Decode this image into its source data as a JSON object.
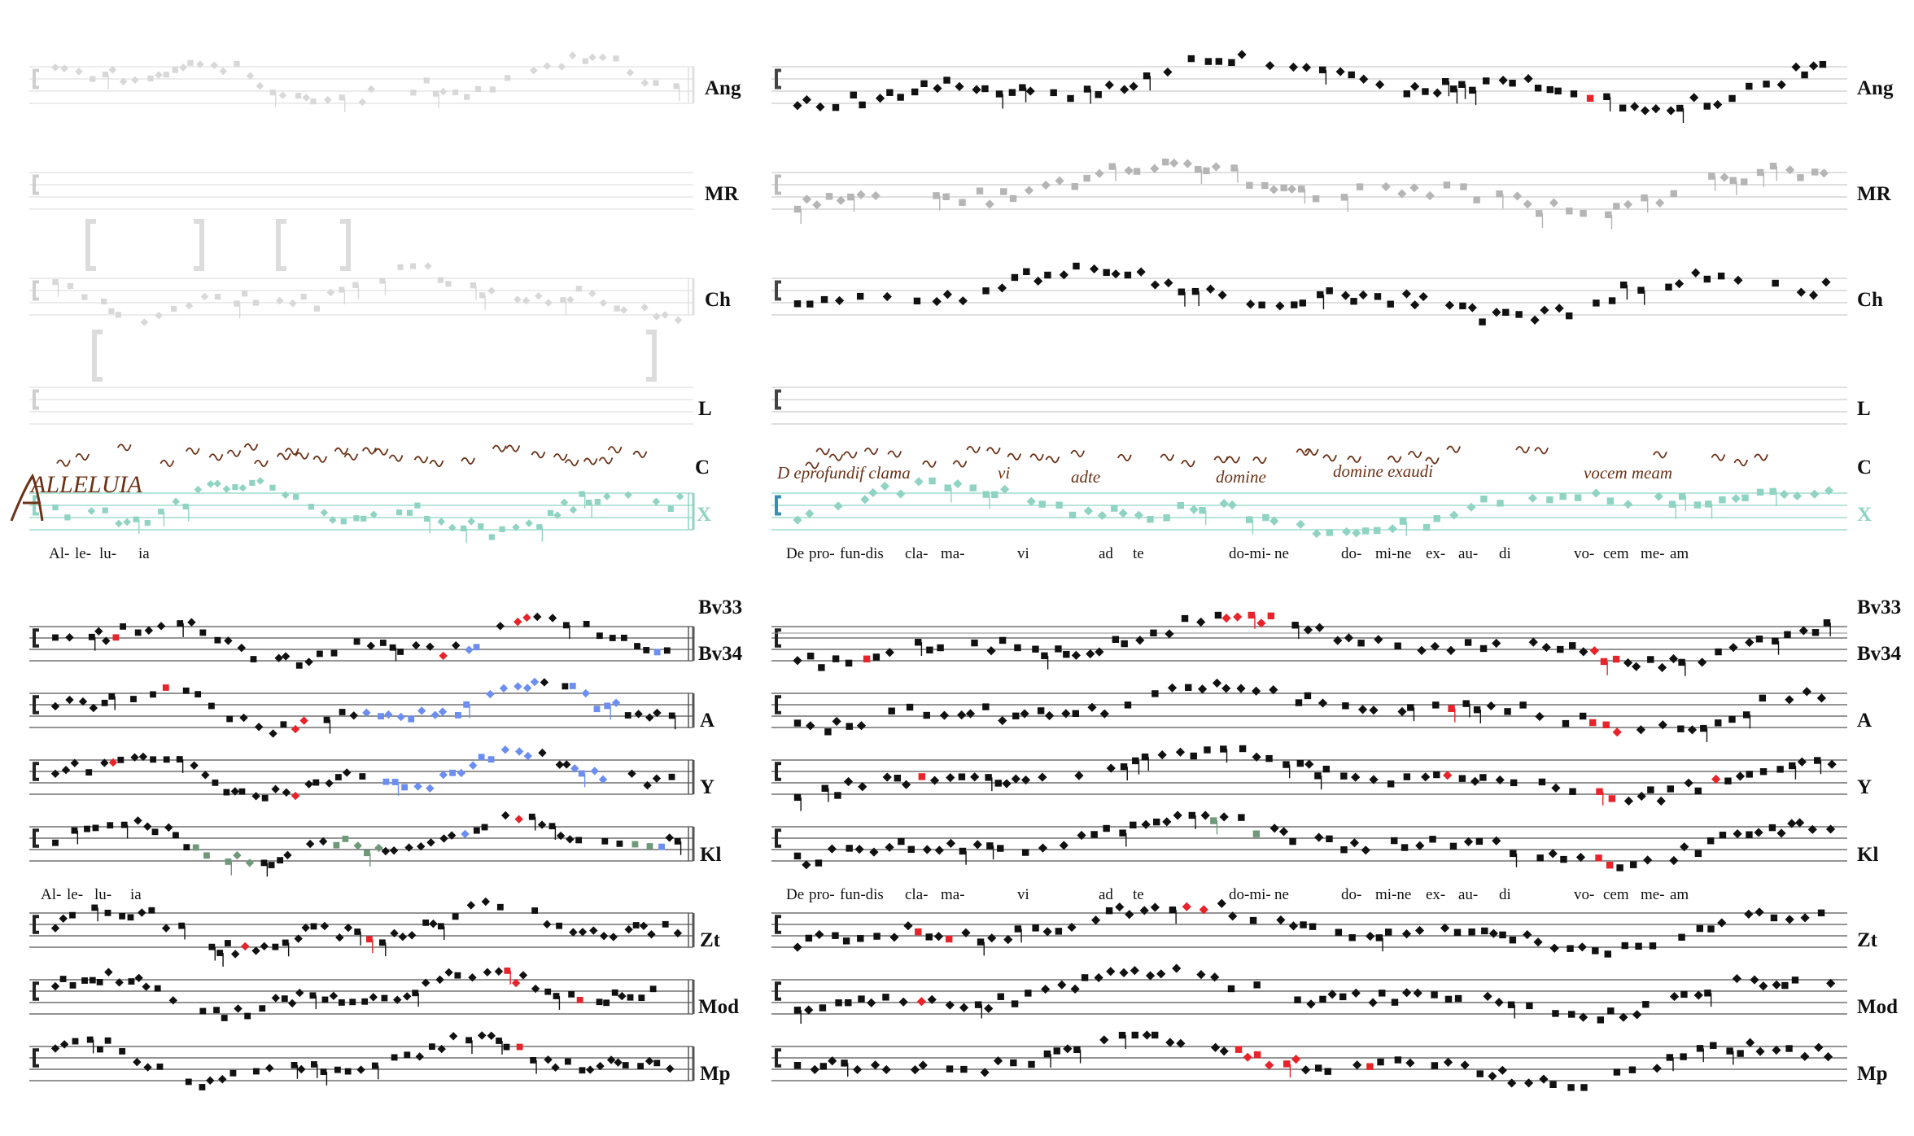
{
  "colors": {
    "ink": "#111111",
    "faint": "#d8d8d8",
    "grey": "#b5b5b5",
    "teal": "#8fd3c3",
    "red": "#e8232a",
    "blue": "#6b8ef0",
    "green": "#6f9a7a",
    "manuscript": "#6b3216"
  },
  "top_sigla": [
    "Ang",
    "MR",
    "Ch",
    "L",
    "C",
    "X"
  ],
  "bottom_sigla": [
    "Bv33",
    "Bv34",
    "A",
    "Y",
    "Kl",
    "Zt",
    "Mod",
    "Mp"
  ],
  "left_panel": {
    "manuscript_incipit": "ALLELUIA",
    "syllables_top": [
      "Al-",
      "le-",
      "lu-",
      "ia"
    ],
    "syllables_bottom": [
      "Al-",
      "le-",
      "lu-",
      "ia"
    ]
  },
  "right_panel": {
    "manuscript_text": [
      "D eprofundif clama",
      "vi",
      "adte",
      "domine",
      "domine exaudi",
      "vocem meam"
    ],
    "syllables_top": [
      "De",
      "pro-",
      "fun-dis",
      "cla-",
      "ma-",
      "vi",
      "ad",
      "te",
      "do-mi-",
      "ne",
      "do-",
      "mi-ne",
      "ex-",
      "au-",
      "di",
      "vo-",
      "cem",
      "me-",
      "am"
    ],
    "syllables_bottom": [
      "De",
      "pro-",
      "fun-dis",
      "cla-",
      "ma-",
      "vi",
      "ad",
      "te",
      "do-mi-",
      "ne",
      "do-",
      "mi-ne",
      "ex-",
      "au-",
      "di",
      "vo-",
      "cem",
      "me-",
      "am"
    ]
  }
}
